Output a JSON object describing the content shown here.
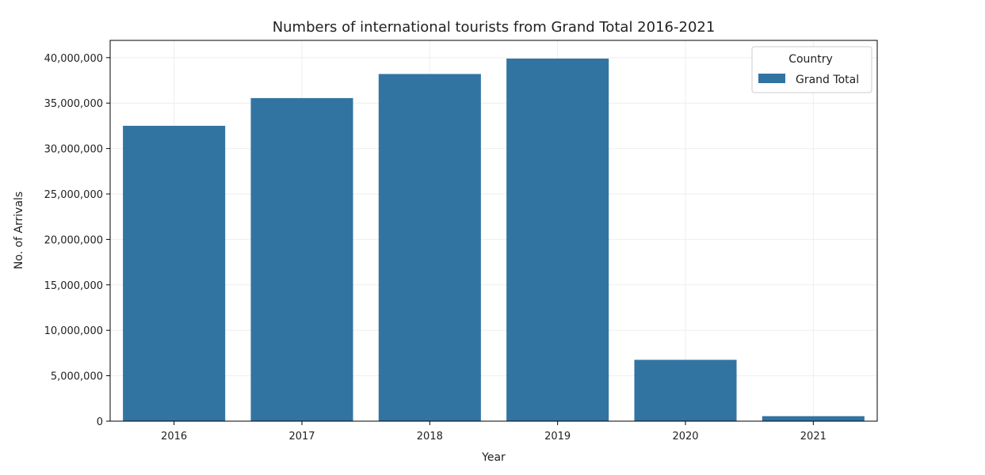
{
  "chart_data": {
    "type": "bar",
    "title": "Numbers of international tourists from Grand Total  2016-2021",
    "xlabel": "Year",
    "ylabel": "No. of Arrivals",
    "categories": [
      "2016",
      "2017",
      "2018",
      "2019",
      "2020",
      "2021"
    ],
    "series": [
      {
        "name": "Grand Total",
        "values": [
          32500000,
          35550000,
          38200000,
          39900000,
          6750000,
          550000
        ]
      }
    ],
    "ylim": [
      0,
      41900000
    ],
    "yticks": [
      0,
      5000000,
      10000000,
      15000000,
      20000000,
      25000000,
      30000000,
      35000000,
      40000000
    ],
    "ytick_labels": [
      "0",
      "5,000,000",
      "10,000,000",
      "15,000,000",
      "20,000,000",
      "25,000,000",
      "30,000,000",
      "35,000,000",
      "40,000,000"
    ],
    "legend": {
      "title": "Country",
      "placement": "top-right"
    },
    "grid": true,
    "colors": {
      "bar": "#3274a1",
      "grid": "#eeeeee",
      "axis": "#000000"
    }
  }
}
